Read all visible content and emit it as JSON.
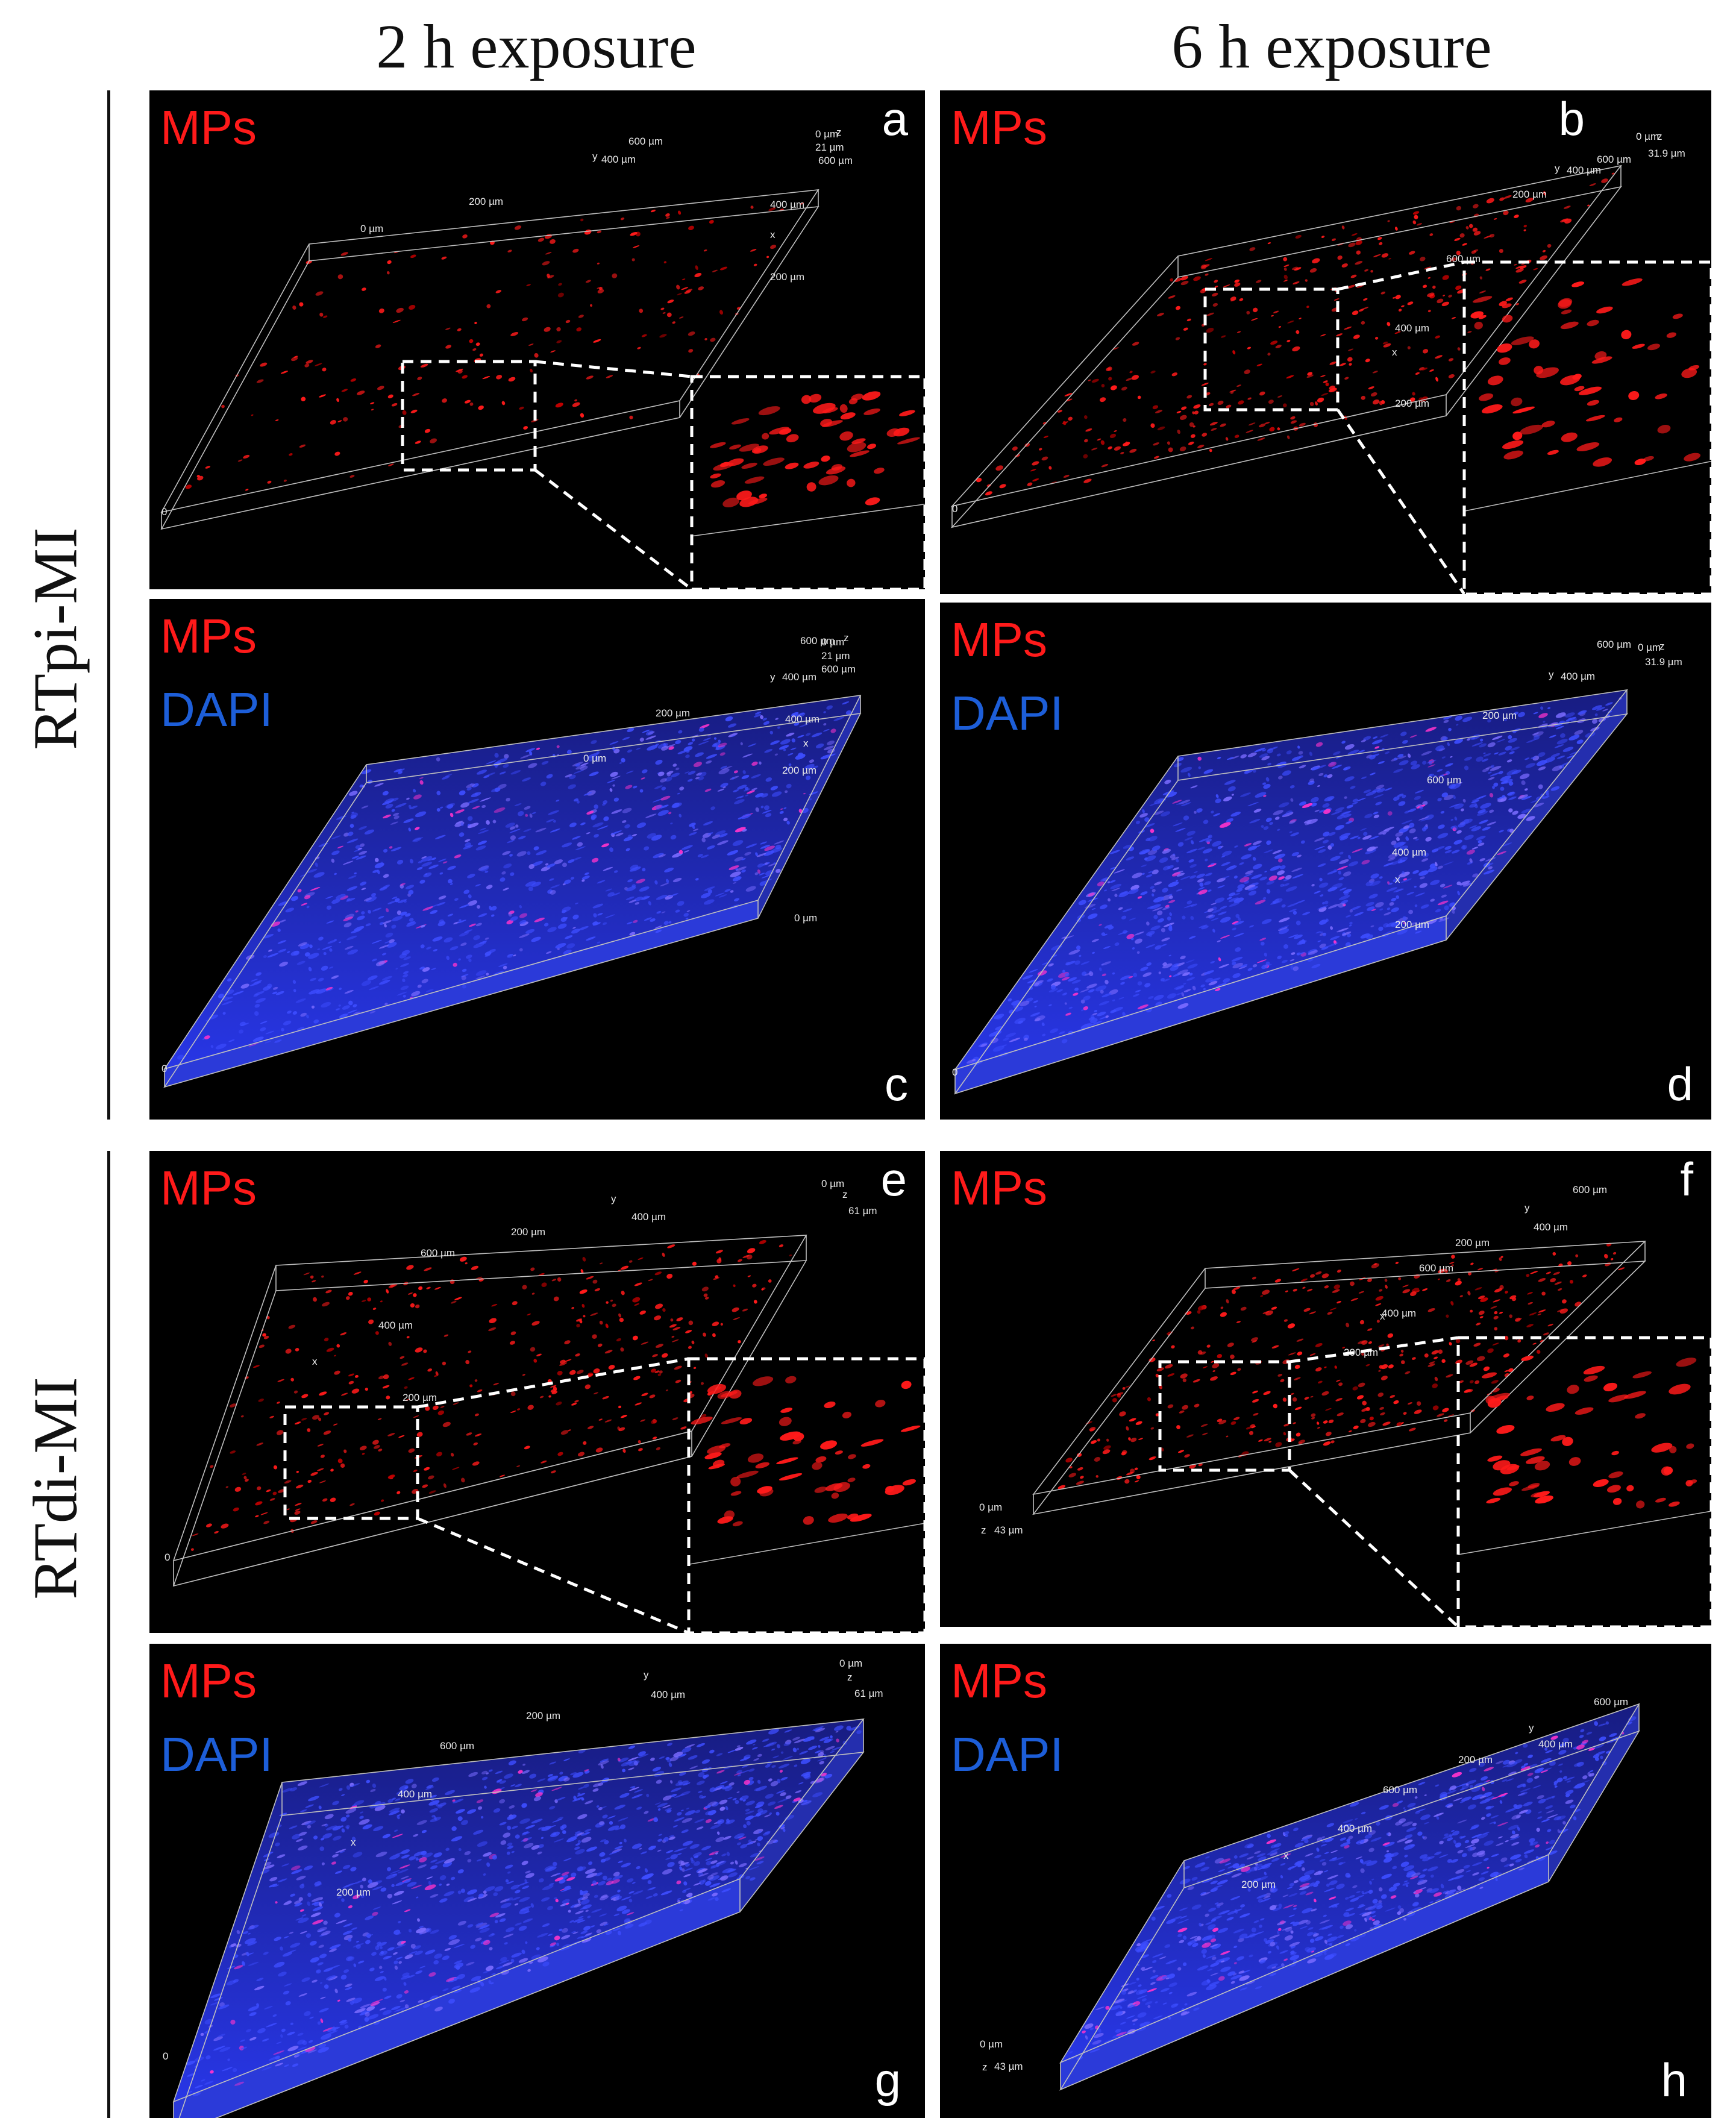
{
  "column_titles": [
    "2 h exposure",
    "6 h exposure"
  ],
  "row_titles": [
    "RTpi-MI",
    "RTdi-MI"
  ],
  "colors": {
    "mps": "#ff1a1a",
    "dapi": "#1d5ed8",
    "background": "#000000",
    "axis": "#bfbfbf",
    "inset_border": "#ffffff"
  },
  "panels": [
    {
      "id": "a",
      "letter": "a",
      "channels": [
        "MPs"
      ],
      "ticks": [
        "0 µm",
        "200 µm",
        "y",
        "400 µm",
        "600 µm",
        "0 µm",
        "z",
        "21 µm",
        "600 µm",
        "400 µm",
        "x",
        "200 µm",
        "0"
      ]
    },
    {
      "id": "b",
      "letter": "b",
      "channels": [
        "MPs"
      ],
      "ticks": [
        "600 µm",
        "0 µm",
        "z",
        "31.9 µm",
        "y",
        "400 µm",
        "200 µm",
        "600 µm",
        "400 µm",
        "x",
        "200 µm",
        "0"
      ]
    },
    {
      "id": "c",
      "letter": "c",
      "channels": [
        "MPs",
        "DAPI"
      ],
      "ticks": [
        "600 µm",
        "0 µm",
        "z",
        "21 µm",
        "600 µm",
        "y",
        "400 µm",
        "200 µm",
        "0 µm",
        "400 µm",
        "x",
        "200 µm",
        "0 µm",
        "0"
      ]
    },
    {
      "id": "d",
      "letter": "d",
      "channels": [
        "MPs",
        "DAPI"
      ],
      "ticks": [
        "600 µm",
        "0 µm",
        "z",
        "31.9 µm",
        "y",
        "400 µm",
        "200 µm",
        "600 µm",
        "400 µm",
        "x",
        "200 µm",
        "0"
      ]
    },
    {
      "id": "e",
      "letter": "e",
      "channels": [
        "MPs"
      ],
      "ticks": [
        "0 µm",
        "z",
        "61 µm",
        "y",
        "400 µm",
        "200 µm",
        "600 µm",
        "400 µm",
        "x",
        "200 µm",
        "0"
      ]
    },
    {
      "id": "f",
      "letter": "f",
      "channels": [
        "MPs"
      ],
      "ticks": [
        "600 µm",
        "y",
        "400 µm",
        "200 µm",
        "600 µm",
        "400 µm",
        "x",
        "200 µm",
        "0 µm",
        "z",
        "43 µm"
      ]
    },
    {
      "id": "g",
      "letter": "g",
      "channels": [
        "MPs",
        "DAPI"
      ],
      "ticks": [
        "0 µm",
        "z",
        "61 µm",
        "y",
        "400 µm",
        "200 µm",
        "600 µm",
        "400 µm",
        "x",
        "200 µm",
        "0"
      ]
    },
    {
      "id": "h",
      "letter": "h",
      "channels": [
        "MPs",
        "DAPI"
      ],
      "ticks": [
        "600 µm",
        "y",
        "400 µm",
        "200 µm",
        "600 µm",
        "400 µm",
        "x",
        "200 µm",
        "0 µm",
        "z",
        "43 µm"
      ]
    }
  ]
}
